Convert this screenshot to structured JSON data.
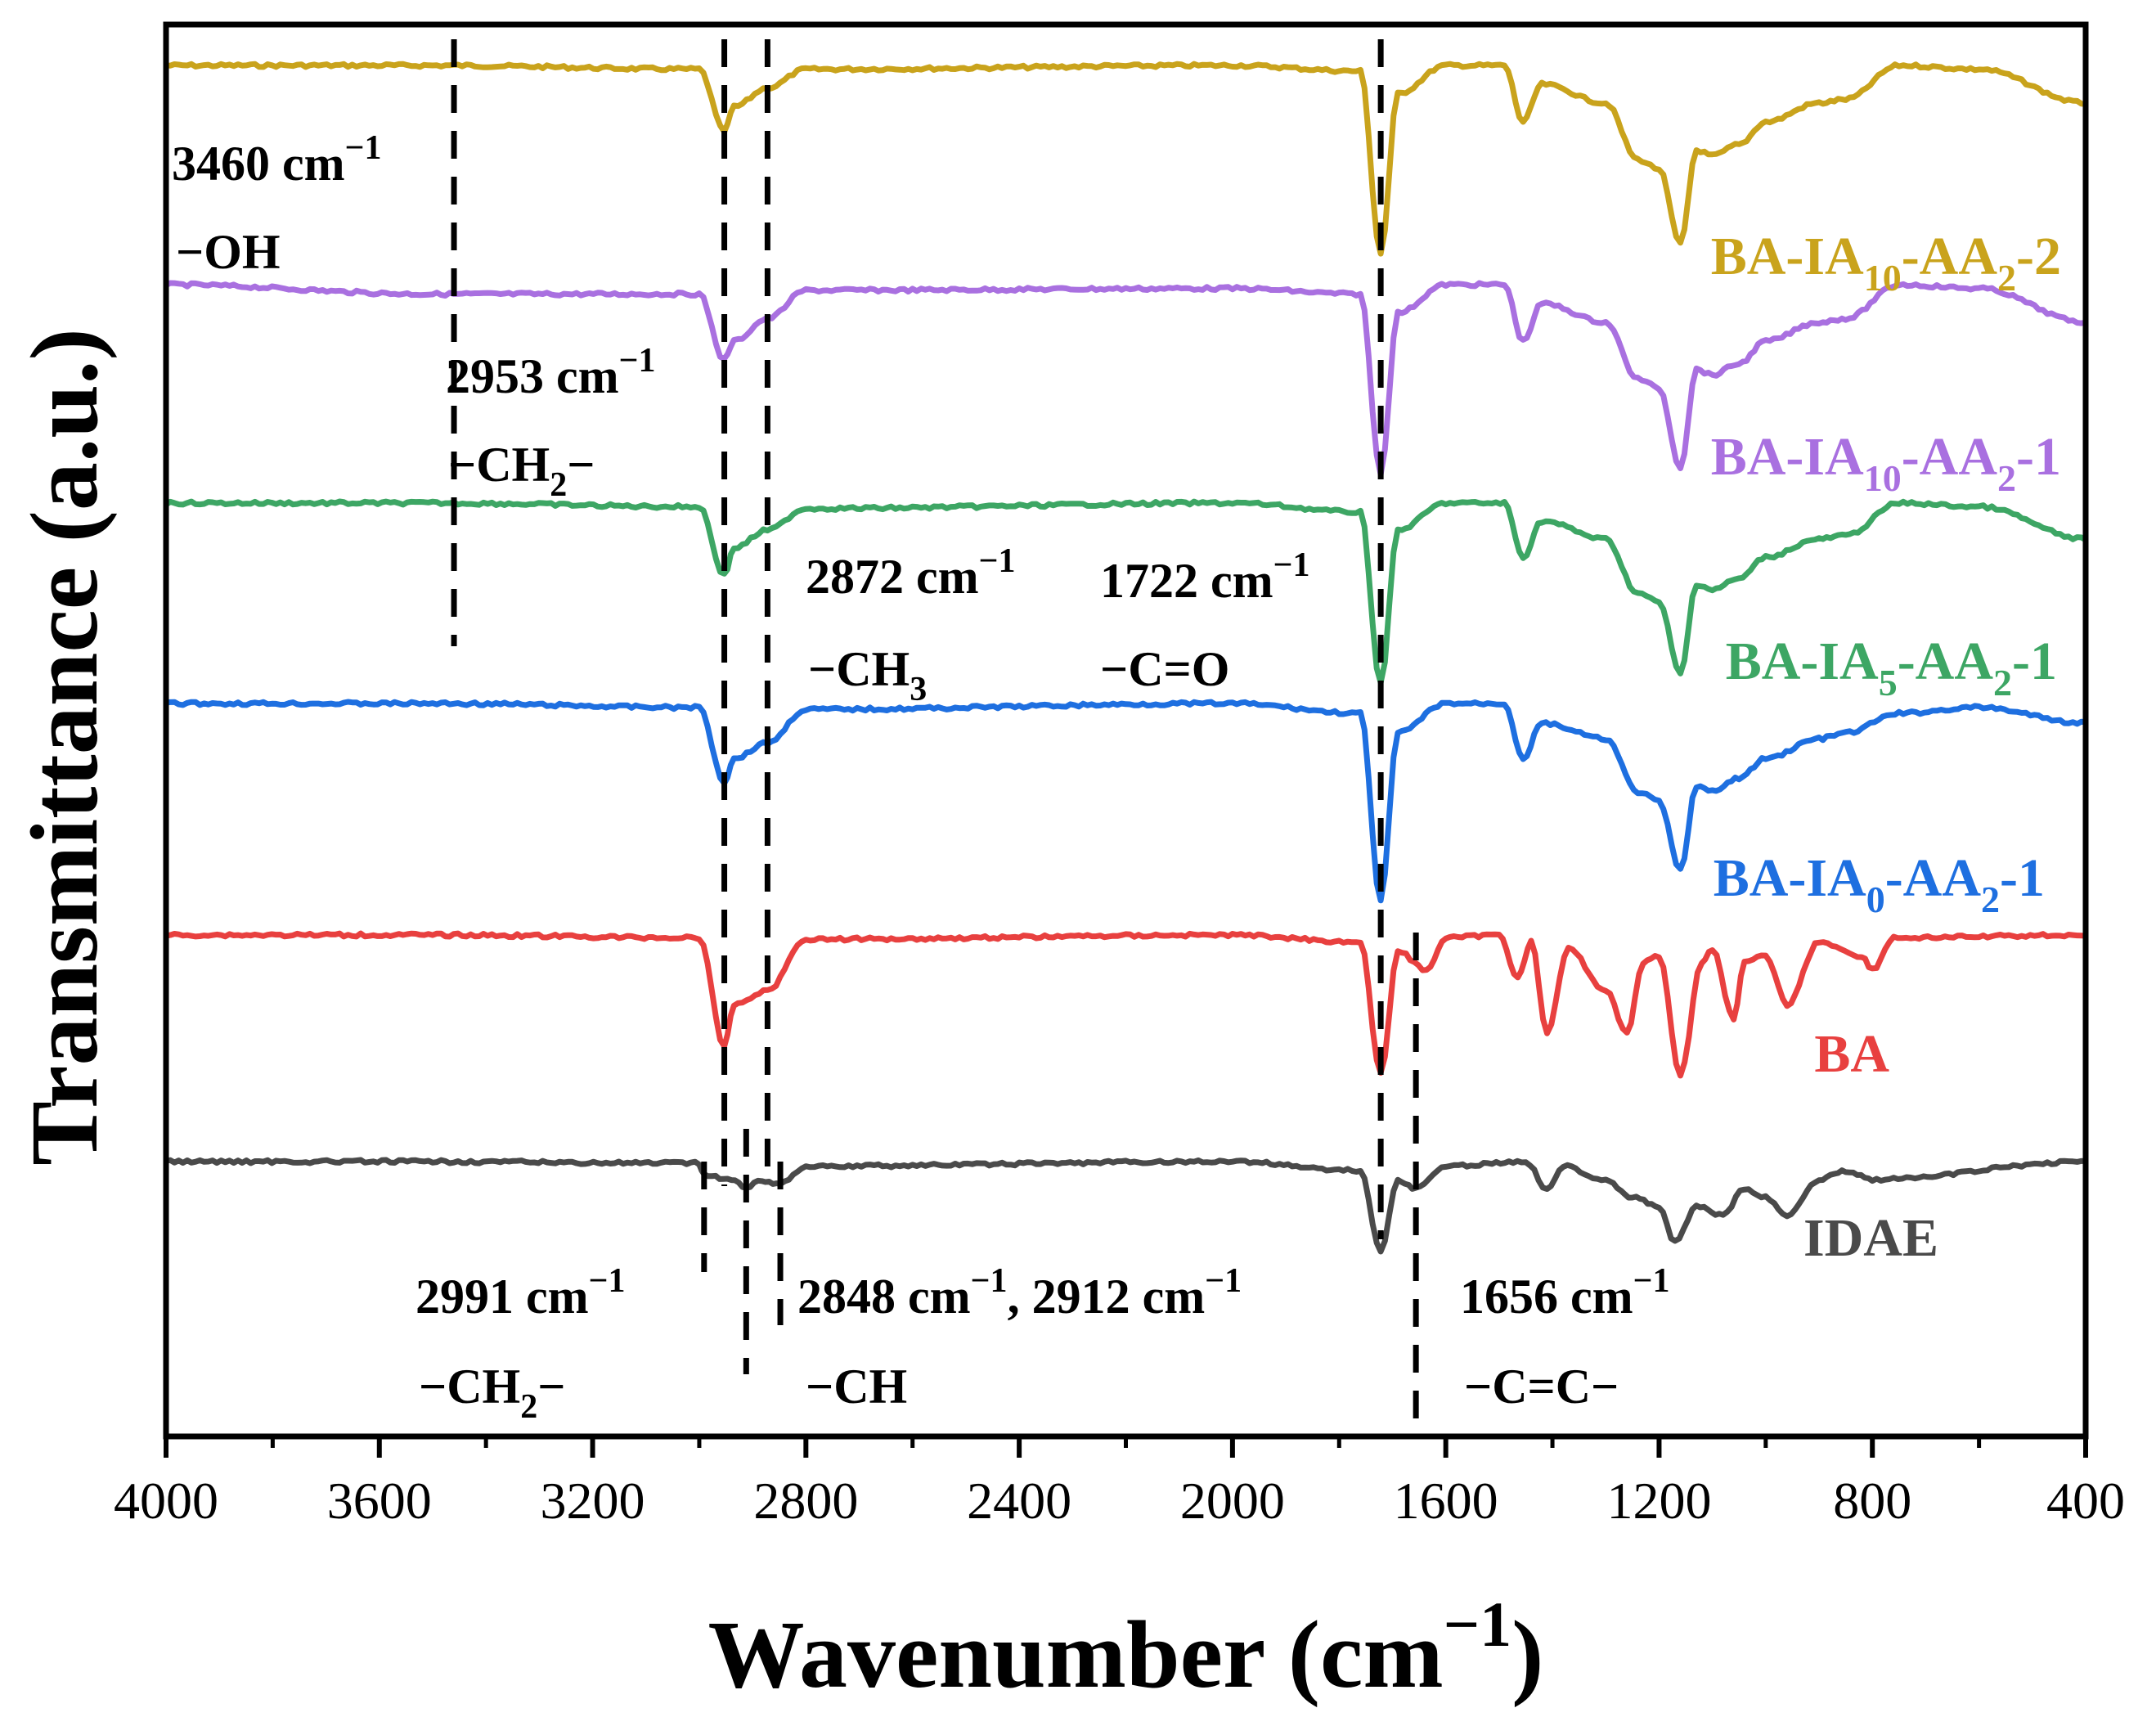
{
  "chart_data": {
    "type": "line",
    "xlabel": "Wavenumber (cm",
    "xlabel_sup": "−1",
    "xlabel_close": ")",
    "ylabel": "Transmittance (a.u.)",
    "xlim": [
      4000,
      400
    ],
    "x_reversed": true,
    "xticks": [
      "4000",
      "3600",
      "3200",
      "2800",
      "2400",
      "2000",
      "1600",
      "1200",
      "800",
      "400"
    ],
    "xtick_values": [
      4000,
      3600,
      3200,
      2800,
      2400,
      2000,
      1600,
      1200,
      800,
      400
    ],
    "y_units": "arbitrary (stacked, normalized depth 0 = baseline, 1 = deepest)",
    "grid": false,
    "series": [
      {
        "name": "BA-IA10-AA2-2",
        "label_parts": [
          {
            "t": "BA-IA"
          },
          {
            "t": "10",
            "sub": true
          },
          {
            "t": "-AA"
          },
          {
            "t": "2",
            "sub": true
          },
          {
            "t": "-2"
          }
        ],
        "color": "#C9A31C",
        "x": [
          4000,
          3500,
          3000,
          2953,
          2935,
          2872,
          2800,
          2000,
          1760,
          1722,
          1690,
          1600,
          1490,
          1455,
          1420,
          1300,
          1240,
          1200,
          1160,
          1130,
          1100,
          1050,
          1000,
          900,
          850,
          750,
          600,
          400
        ],
        "y": [
          0,
          0.0,
          0.02,
          0.35,
          0.22,
          0.12,
          0.02,
          0.0,
          0.03,
          1.0,
          0.15,
          0.0,
          0.0,
          0.3,
          0.1,
          0.2,
          0.5,
          0.55,
          0.95,
          0.45,
          0.48,
          0.42,
          0.3,
          0.2,
          0.18,
          0.0,
          0.02,
          0.2
        ]
      },
      {
        "name": "BA-IA10-AA2-1",
        "label_parts": [
          {
            "t": "BA-IA"
          },
          {
            "t": "10",
            "sub": true
          },
          {
            "t": "-AA"
          },
          {
            "t": "2",
            "sub": true
          },
          {
            "t": "-1"
          }
        ],
        "color": "#A970E0",
        "x": [
          4000,
          3500,
          3000,
          2953,
          2935,
          2872,
          2800,
          2000,
          1760,
          1722,
          1690,
          1600,
          1490,
          1455,
          1420,
          1300,
          1240,
          1200,
          1160,
          1130,
          1100,
          1050,
          1000,
          900,
          850,
          750,
          600,
          400
        ],
        "y": [
          0,
          0.05,
          0.05,
          0.4,
          0.3,
          0.18,
          0.03,
          0.02,
          0.05,
          1.0,
          0.15,
          0.0,
          0.0,
          0.3,
          0.1,
          0.2,
          0.5,
          0.55,
          0.97,
          0.45,
          0.48,
          0.42,
          0.3,
          0.2,
          0.18,
          0.0,
          0.02,
          0.2
        ]
      },
      {
        "name": "BA-IA5-AA2-1",
        "label_parts": [
          {
            "t": "BA-IA"
          },
          {
            "t": "5",
            "sub": true
          },
          {
            "t": "-AA"
          },
          {
            "t": "2",
            "sub": true
          },
          {
            "t": "-1"
          }
        ],
        "color": "#3DA664",
        "x": [
          4000,
          3500,
          3000,
          2953,
          2935,
          2872,
          2800,
          2000,
          1760,
          1722,
          1690,
          1600,
          1490,
          1455,
          1420,
          1300,
          1240,
          1200,
          1160,
          1130,
          1100,
          1050,
          1000,
          900,
          850,
          750,
          600,
          400
        ],
        "y": [
          0,
          0.0,
          0.02,
          0.4,
          0.25,
          0.15,
          0.03,
          0.0,
          0.05,
          1.0,
          0.15,
          0.0,
          0.0,
          0.3,
          0.1,
          0.2,
          0.5,
          0.55,
          0.95,
          0.45,
          0.48,
          0.42,
          0.3,
          0.2,
          0.18,
          0.0,
          0.02,
          0.2
        ]
      },
      {
        "name": "BA-IA0-AA2-1",
        "label_parts": [
          {
            "t": "BA-IA"
          },
          {
            "t": "0",
            "sub": true
          },
          {
            "t": "-AA"
          },
          {
            "t": "2",
            "sub": true
          },
          {
            "t": "-1"
          }
        ],
        "color": "#1E6FE0",
        "x": [
          4000,
          3500,
          3000,
          2953,
          2935,
          2872,
          2800,
          2000,
          1760,
          1722,
          1690,
          1600,
          1490,
          1455,
          1420,
          1300,
          1240,
          1200,
          1160,
          1130,
          1100,
          1050,
          1000,
          900,
          850,
          750,
          600,
          400
        ],
        "y": [
          0,
          0.0,
          0.02,
          0.4,
          0.28,
          0.2,
          0.03,
          0.0,
          0.05,
          1.0,
          0.15,
          0.0,
          0.0,
          0.28,
          0.1,
          0.18,
          0.45,
          0.5,
          0.85,
          0.42,
          0.45,
          0.38,
          0.28,
          0.18,
          0.15,
          0.05,
          0.02,
          0.1
        ]
      },
      {
        "name": "BA",
        "label_parts": [
          {
            "t": "BA"
          }
        ],
        "color": "#E8403F",
        "x": [
          4000,
          3500,
          3000,
          2953,
          2935,
          2872,
          2800,
          2000,
          1760,
          1722,
          1690,
          1636,
          1600,
          1500,
          1465,
          1440,
          1410,
          1370,
          1300,
          1260,
          1230,
          1200,
          1160,
          1120,
          1100,
          1060,
          1040,
          1000,
          960,
          900,
          820,
          800,
          760,
          400
        ],
        "y": [
          0,
          0.0,
          0.02,
          0.8,
          0.5,
          0.4,
          0.03,
          0.0,
          0.05,
          1.0,
          0.12,
          0.25,
          0.02,
          0.0,
          0.3,
          0.05,
          0.7,
          0.1,
          0.4,
          0.7,
          0.2,
          0.15,
          1.0,
          0.2,
          0.1,
          0.6,
          0.2,
          0.15,
          0.5,
          0.05,
          0.15,
          0.25,
          0.02,
          0.0
        ]
      },
      {
        "name": "IDAE",
        "label_parts": [
          {
            "t": "IDAE"
          }
        ],
        "color": "#4A4A4A",
        "x": [
          4000,
          3500,
          3000,
          2991,
          2940,
          2912,
          2890,
          2848,
          2800,
          2000,
          1760,
          1722,
          1690,
          1656,
          1600,
          1450,
          1410,
          1380,
          1300,
          1250,
          1200,
          1170,
          1130,
          1080,
          1040,
          1000,
          960,
          900,
          850,
          800,
          400
        ],
        "y": [
          0.0,
          0.0,
          0.02,
          0.15,
          0.2,
          0.3,
          0.2,
          0.25,
          0.05,
          0.0,
          0.1,
          1.0,
          0.2,
          0.3,
          0.05,
          0.0,
          0.3,
          0.05,
          0.2,
          0.4,
          0.5,
          0.9,
          0.5,
          0.6,
          0.3,
          0.4,
          0.6,
          0.2,
          0.1,
          0.2,
          0.0
        ]
      }
    ],
    "vlines": [
      {
        "x": 3460,
        "from": "BA-IA10-AA2-2",
        "to": "BA-IA5-AA2-1"
      },
      {
        "x": 2953,
        "from": "BA-IA10-AA2-2",
        "to": "BA"
      },
      {
        "x": 2872,
        "from": "BA-IA10-AA2-2",
        "to": "BA"
      },
      {
        "x": 1722,
        "from": "BA-IA10-AA2-2",
        "to": "IDAE"
      },
      {
        "x": 2991,
        "from": "IDAE",
        "to": "IDAE"
      },
      {
        "x": 2912,
        "from": "IDAE",
        "to": "IDAE"
      },
      {
        "x": 2848,
        "from": "IDAE",
        "to": "IDAE"
      },
      {
        "x": 1656,
        "from": "BA",
        "to": "IDAE"
      }
    ],
    "annotations": [
      {
        "id": "a3460",
        "line1": "3460 cm",
        "sup": "−1",
        "line2": "−OH"
      },
      {
        "id": "a2953",
        "line1": "2953 cm",
        "sup": "−1",
        "line2": "−CH",
        "sub2": "2",
        "line2b": "−"
      },
      {
        "id": "a2872",
        "line1": "2872 cm",
        "sup": "−1",
        "line2": "−CH",
        "sub2": "3",
        "line2b": ""
      },
      {
        "id": "a1722",
        "line1": "1722 cm",
        "sup": "−1",
        "line2": "−C=O"
      },
      {
        "id": "a2991",
        "line1": "2991 cm",
        "sup": "−1",
        "line2": "−CH",
        "sub2": "2",
        "line2b": "−"
      },
      {
        "id": "a2848",
        "line1": "2848 cm",
        "sup": "−1",
        "line1b": ", 2912 cm",
        "sup2": "−1",
        "line2": "−CH"
      },
      {
        "id": "a1656",
        "line1": "1656 cm",
        "sup": "−1",
        "line2": "−C=C−"
      }
    ]
  }
}
